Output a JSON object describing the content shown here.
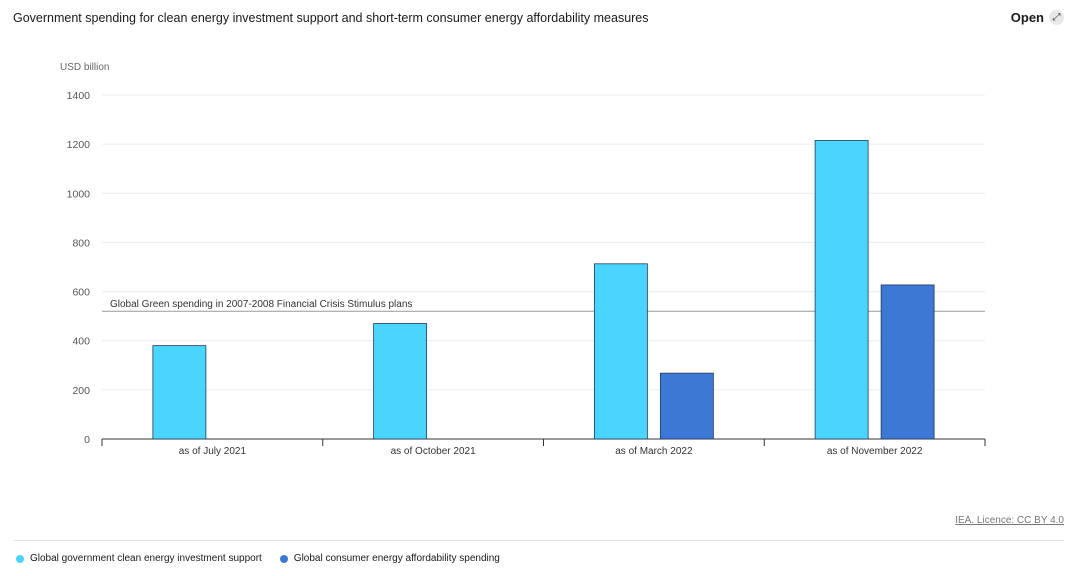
{
  "header": {
    "title": "Government spending for clean energy investment support and short-term consumer energy affordability measures",
    "open_label": "Open",
    "open_icon": "expand-icon"
  },
  "footer": {
    "source": "IEA. Licence: CC BY 4.0"
  },
  "chart_data": {
    "type": "bar",
    "title": "Government spending for clean energy investment support and short-term consumer energy affordability measures",
    "ylabel": "USD billion",
    "xlabel": "",
    "ylim": [
      0,
      1400
    ],
    "yticks": [
      0,
      200,
      400,
      600,
      800,
      1000,
      1200,
      1400
    ],
    "categories": [
      "as of July 2021",
      "as of October 2021",
      "as of March 2022",
      "as of November 2022"
    ],
    "series": [
      {
        "name": "Global government clean energy investment support",
        "color": "#49d5ff",
        "values": [
          380,
          470,
          713,
          1215
        ]
      },
      {
        "name": "Global consumer energy affordability spending",
        "color": "#3d78d6",
        "values": [
          null,
          null,
          268,
          627
        ]
      }
    ],
    "reference_line": {
      "label": "Global Green spending in 2007-2008 Financial Crisis Stimulus plans",
      "value": 520
    },
    "grid": true,
    "legend_position": "bottom-left"
  }
}
